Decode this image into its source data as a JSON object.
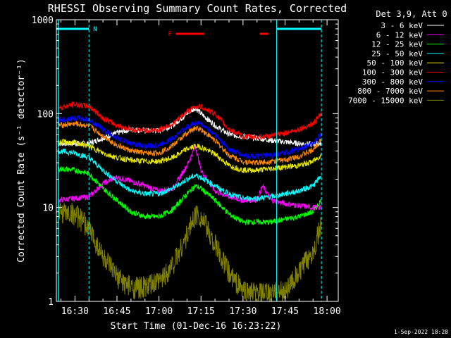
{
  "chart_data": {
    "type": "line",
    "title": "RHESSI Observing Summary Count Rates, Corrected",
    "xlabel": "Start Time (01-Dec-16 16:23:22)",
    "ylabel": "Corrected Count Rate (s⁻¹ detector⁻¹)",
    "yscale": "log",
    "ylim": [
      1,
      1000
    ],
    "xlim": [
      "16:23:22",
      "18:04:00"
    ],
    "x_ticks": [
      "16:30",
      "16:45",
      "17:00",
      "17:15",
      "17:30",
      "17:45",
      "18:00"
    ],
    "y_ticks": [
      "1",
      "10",
      "100",
      "1000"
    ],
    "legend_title": "Det 3,9, Att 0",
    "legend_position": "right",
    "footer": "1-Sep-2022 18:28",
    "markers": {
      "n_label": "N",
      "f_label": "F",
      "night_intervals": [
        [
          "16:23:22",
          "16:35:00"
        ],
        [
          "17:42:00",
          "17:58:00"
        ]
      ],
      "flare_intervals": [
        [
          "17:06:00",
          "17:16:00"
        ],
        [
          "17:36:00",
          "17:39:00"
        ]
      ],
      "vertical_lines": [
        "16:24:00",
        "16:35:00",
        "17:42:00",
        "17:58:00"
      ]
    },
    "series": [
      {
        "name": "3 - 6 keV",
        "color": "#ffffff",
        "x": [
          "16:24",
          "16:30",
          "16:35",
          "16:40",
          "16:45",
          "16:50",
          "16:55",
          "17:00",
          "17:05",
          "17:10",
          "17:13",
          "17:15",
          "17:20",
          "17:25",
          "17:30",
          "17:35",
          "17:40",
          "17:45",
          "17:50",
          "17:55",
          "17:58"
        ],
        "values": [
          48,
          48,
          48,
          55,
          62,
          68,
          66,
          66,
          75,
          100,
          115,
          100,
          75,
          60,
          57,
          55,
          52,
          50,
          48,
          47,
          48
        ]
      },
      {
        "name": "6 - 12 keV",
        "color": "#ff00ff",
        "x": [
          "16:24",
          "16:30",
          "16:35",
          "16:40",
          "16:45",
          "16:50",
          "16:55",
          "17:00",
          "17:05",
          "17:10",
          "17:12",
          "17:13",
          "17:15",
          "17:20",
          "17:25",
          "17:30",
          "17:35",
          "17:37",
          "17:40",
          "17:45",
          "17:50",
          "17:55",
          "17:58"
        ],
        "values": [
          12,
          12.5,
          13,
          18,
          21,
          19,
          17,
          15,
          16,
          28,
          38,
          45,
          25,
          15,
          13,
          12,
          12,
          17,
          12,
          11,
          10.5,
          10,
          10
        ]
      },
      {
        "name": "12 - 25 keV",
        "color": "#00ff00",
        "x": [
          "16:24",
          "16:30",
          "16:35",
          "16:40",
          "16:45",
          "16:50",
          "16:55",
          "17:00",
          "17:05",
          "17:10",
          "17:13",
          "17:15",
          "17:20",
          "17:25",
          "17:30",
          "17:35",
          "17:40",
          "17:45",
          "17:50",
          "17:55",
          "17:58"
        ],
        "values": [
          26,
          25,
          23,
          16,
          12,
          9,
          8,
          8,
          9.5,
          14,
          17,
          16,
          12,
          8.5,
          7,
          7,
          7,
          7.5,
          8,
          9,
          12
        ]
      },
      {
        "name": "25 - 50 keV",
        "color": "#00ffff",
        "x": [
          "16:24",
          "16:30",
          "16:35",
          "16:40",
          "16:45",
          "16:50",
          "16:55",
          "17:00",
          "17:05",
          "17:10",
          "17:13",
          "17:15",
          "17:20",
          "17:25",
          "17:30",
          "17:35",
          "17:40",
          "17:45",
          "17:50",
          "17:55",
          "17:58"
        ],
        "values": [
          40,
          38,
          34,
          25,
          19,
          15,
          14,
          14,
          16,
          20,
          22,
          21,
          17,
          14,
          12.5,
          12.5,
          13,
          14,
          15,
          17,
          22
        ]
      },
      {
        "name": "50 - 100 keV",
        "color": "#e6e600",
        "x": [
          "16:24",
          "16:30",
          "16:35",
          "16:40",
          "16:45",
          "16:50",
          "16:55",
          "17:00",
          "17:05",
          "17:10",
          "17:13",
          "17:15",
          "17:20",
          "17:25",
          "17:30",
          "17:35",
          "17:40",
          "17:45",
          "17:50",
          "17:55",
          "17:58"
        ],
        "values": [
          50,
          49,
          45,
          38,
          34,
          32,
          31,
          31,
          34,
          42,
          45,
          44,
          37,
          28,
          25,
          25,
          26,
          27,
          28,
          31,
          36
        ]
      },
      {
        "name": "100 - 300 keV",
        "color": "#ff0000",
        "x": [
          "16:24",
          "16:30",
          "16:35",
          "16:40",
          "16:45",
          "16:50",
          "16:55",
          "17:00",
          "17:05",
          "17:10",
          "17:13",
          "17:15",
          "17:20",
          "17:25",
          "17:30",
          "17:35",
          "17:40",
          "17:45",
          "17:50",
          "17:55",
          "17:58"
        ],
        "values": [
          115,
          125,
          120,
          90,
          75,
          68,
          66,
          67,
          78,
          105,
          118,
          118,
          100,
          68,
          57,
          56,
          58,
          62,
          68,
          78,
          100
        ]
      },
      {
        "name": "300 - 800 keV",
        "color": "#0000ff",
        "x": [
          "16:24",
          "16:30",
          "16:35",
          "16:40",
          "16:45",
          "16:50",
          "16:55",
          "17:00",
          "17:05",
          "17:10",
          "17:13",
          "17:15",
          "17:20",
          "17:25",
          "17:30",
          "17:35",
          "17:40",
          "17:45",
          "17:50",
          "17:55",
          "17:58"
        ],
        "values": [
          85,
          90,
          86,
          68,
          55,
          48,
          45,
          46,
          55,
          72,
          80,
          78,
          60,
          42,
          36,
          35,
          36,
          38,
          42,
          48,
          62
        ]
      },
      {
        "name": "800 - 7000 keV",
        "color": "#ff8800",
        "x": [
          "16:24",
          "16:30",
          "16:35",
          "16:40",
          "16:45",
          "16:50",
          "16:55",
          "17:00",
          "17:05",
          "17:10",
          "17:13",
          "17:15",
          "17:20",
          "17:25",
          "17:30",
          "17:35",
          "17:40",
          "17:45",
          "17:50",
          "17:55",
          "17:58"
        ],
        "values": [
          75,
          78,
          74,
          58,
          46,
          40,
          38,
          38,
          46,
          62,
          70,
          68,
          52,
          36,
          31,
          30,
          31,
          32,
          35,
          41,
          55
        ]
      },
      {
        "name": "7000 - 15000 keV",
        "color": "#808000",
        "x": [
          "16:24",
          "16:30",
          "16:35",
          "16:40",
          "16:45",
          "16:50",
          "16:55",
          "17:00",
          "17:05",
          "17:10",
          "17:13",
          "17:15",
          "17:20",
          "17:25",
          "17:30",
          "17:35",
          "17:40",
          "17:45",
          "17:50",
          "17:55",
          "17:58"
        ],
        "values": [
          9,
          8.5,
          6,
          3,
          1.8,
          1.4,
          1.4,
          1.6,
          2.5,
          5,
          8.5,
          8,
          4,
          2,
          1.3,
          1.2,
          1.2,
          1.3,
          2,
          3.5,
          6.5
        ]
      }
    ]
  }
}
